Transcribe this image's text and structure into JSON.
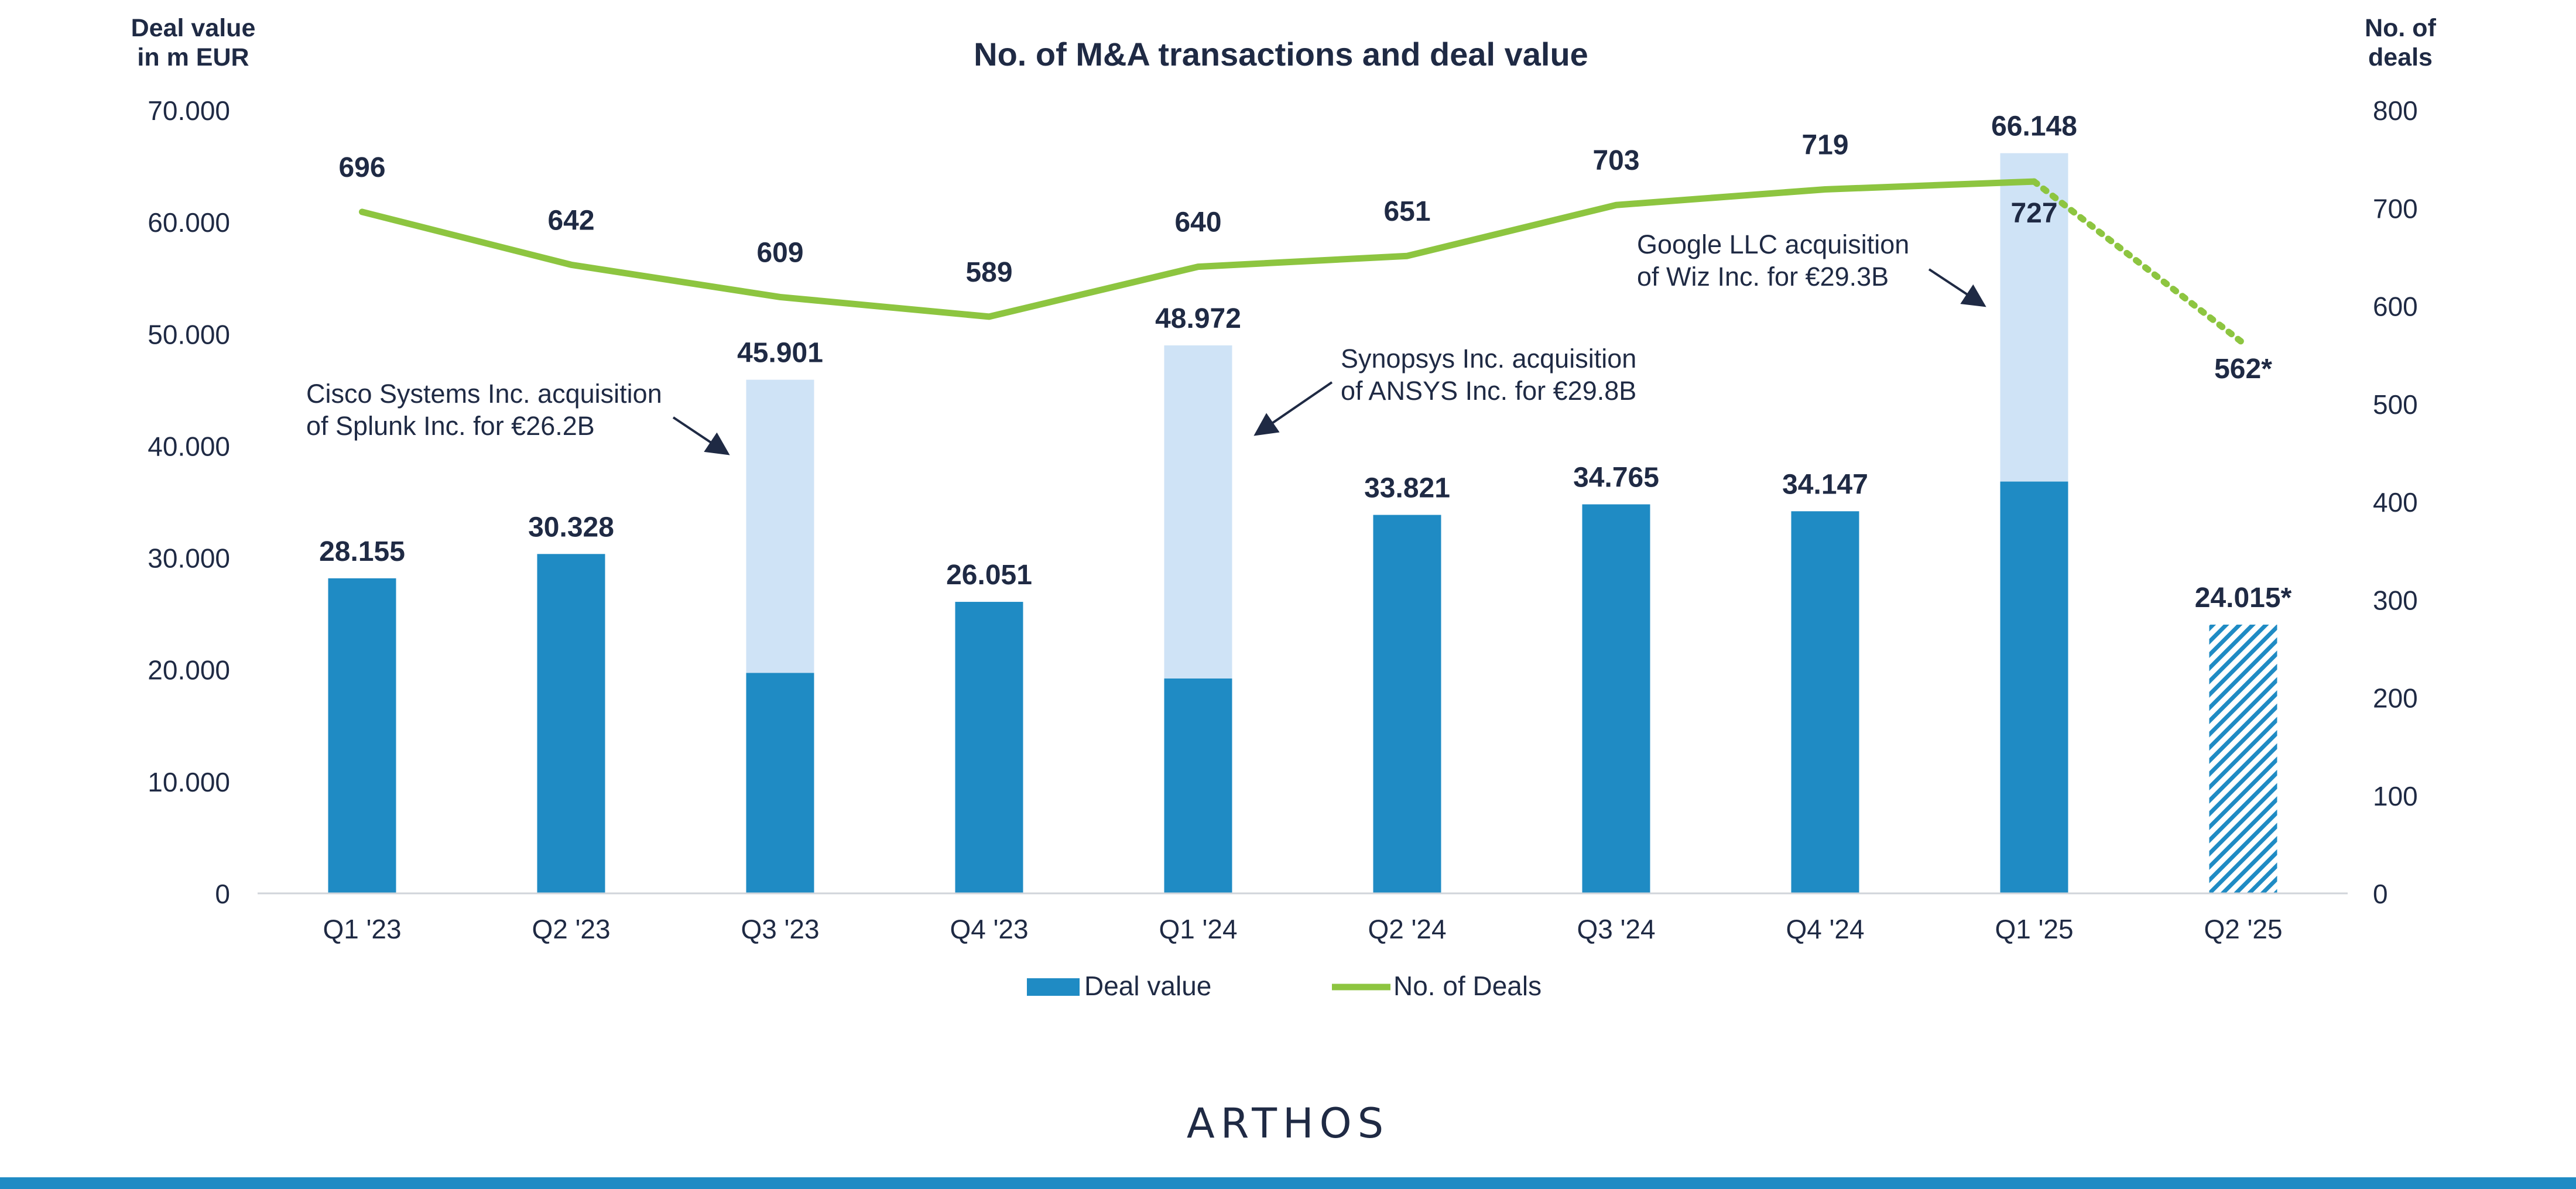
{
  "colors": {
    "bar": "#1f8bc4",
    "bar_mega": "#cfe3f6",
    "line": "#8dc540",
    "text": "#1f2a44",
    "brand_bar": "#1f8bc4"
  },
  "chart_data": {
    "type": "bar",
    "title": "No. of M&A transactions and deal value",
    "y_left_label_1": "Deal value",
    "y_left_label_2": "in m EUR",
    "y_right_label_1": "No. of",
    "y_right_label_2": "deals",
    "y_left_lim": [
      0,
      70000
    ],
    "y_right_lim": [
      0,
      800
    ],
    "y_left_ticks": [
      "0",
      "10.000",
      "20.000",
      "30.000",
      "40.000",
      "50.000",
      "60.000",
      "70.000"
    ],
    "y_right_ticks": [
      "0",
      "100",
      "200",
      "300",
      "400",
      "500",
      "600",
      "700",
      "800"
    ],
    "grid": false,
    "legend_position": "bottom-center",
    "categories": [
      "Q1 '23",
      "Q2 '23",
      "Q3 '23",
      "Q4 '23",
      "Q1 '24",
      "Q2 '24",
      "Q3 '24",
      "Q4 '24",
      "Q1 '25",
      "Q2 '25"
    ],
    "series": [
      {
        "name": "Deal value",
        "type": "bar",
        "axis": "left",
        "values": [
          28155,
          30328,
          19700,
          26051,
          19200,
          33821,
          34765,
          34147,
          36800,
          24015
        ],
        "totals": [
          28155,
          30328,
          45901,
          26051,
          48972,
          33821,
          34765,
          34147,
          66148,
          24015
        ],
        "labels": [
          "28.155",
          "30.328",
          "45.901",
          "26.051",
          "48.972",
          "33.821",
          "34.765",
          "34.147",
          "66.148",
          "24.015*"
        ],
        "estimated_index": 9
      },
      {
        "name": "No. of Deals",
        "type": "line",
        "axis": "right",
        "values": [
          696,
          642,
          609,
          589,
          640,
          651,
          703,
          719,
          727,
          562
        ],
        "labels": [
          "696",
          "642",
          "609",
          "589",
          "640",
          "651",
          "703",
          "719",
          "727",
          "562*"
        ],
        "estimated_index": 9
      }
    ],
    "annotations": [
      {
        "line1": "Cisco Systems Inc. acquisition",
        "line2": "of Splunk Inc. for €26.2B",
        "category_index": 2
      },
      {
        "line1": "Synopsys Inc. acquisition",
        "line2": "of ANSYS Inc. for €29.8B",
        "category_index": 4
      },
      {
        "line1": "Google LLC acquisition",
        "line2": "of Wiz Inc. for €29.3B",
        "category_index": 8
      }
    ]
  },
  "brand": {
    "name": "ARTHOS"
  }
}
